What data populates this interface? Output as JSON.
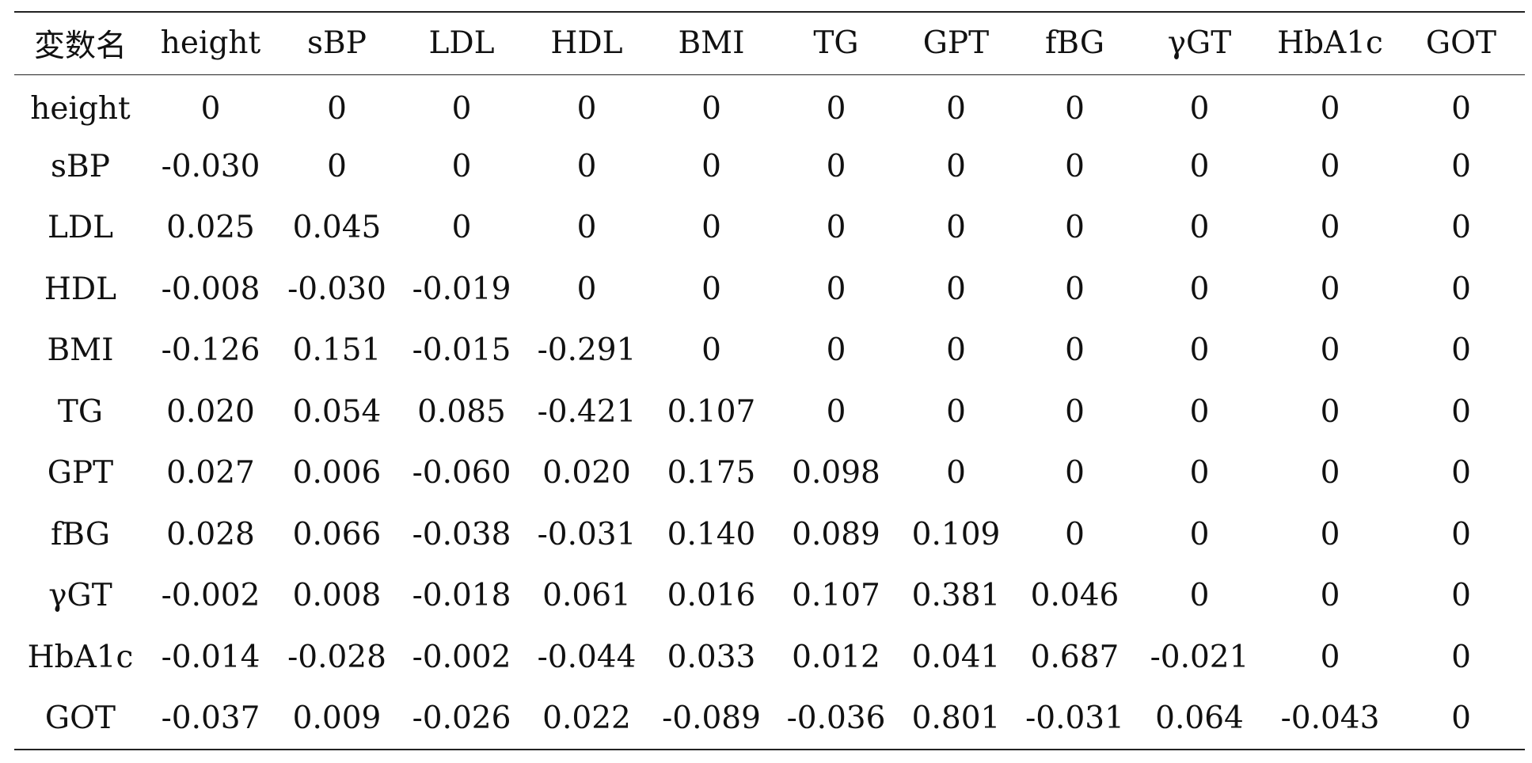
{
  "table": {
    "headers": [
      "変数名",
      "height",
      "sBP",
      "LDL",
      "HDL",
      "BMI",
      "TG",
      "GPT",
      "fBG",
      "γGT",
      "HbA1c",
      "GOT"
    ],
    "rows": [
      {
        "label": "height",
        "cells": [
          "0",
          "0",
          "0",
          "0",
          "0",
          "0",
          "0",
          "0",
          "0",
          "0",
          "0"
        ]
      },
      {
        "label": "sBP",
        "cells": [
          "-0.030",
          "0",
          "0",
          "0",
          "0",
          "0",
          "0",
          "0",
          "0",
          "0",
          "0"
        ]
      },
      {
        "label": "LDL",
        "cells": [
          "0.025",
          "0.045",
          "0",
          "0",
          "0",
          "0",
          "0",
          "0",
          "0",
          "0",
          "0"
        ]
      },
      {
        "label": "HDL",
        "cells": [
          "-0.008",
          "-0.030",
          "-0.019",
          "0",
          "0",
          "0",
          "0",
          "0",
          "0",
          "0",
          "0"
        ]
      },
      {
        "label": "BMI",
        "cells": [
          "-0.126",
          "0.151",
          "-0.015",
          "-0.291",
          "0",
          "0",
          "0",
          "0",
          "0",
          "0",
          "0"
        ]
      },
      {
        "label": "TG",
        "cells": [
          "0.020",
          "0.054",
          "0.085",
          "-0.421",
          "0.107",
          "0",
          "0",
          "0",
          "0",
          "0",
          "0"
        ]
      },
      {
        "label": "GPT",
        "cells": [
          "0.027",
          "0.006",
          "-0.060",
          "0.020",
          "0.175",
          "0.098",
          "0",
          "0",
          "0",
          "0",
          "0"
        ]
      },
      {
        "label": "fBG",
        "cells": [
          "0.028",
          "0.066",
          "-0.038",
          "-0.031",
          "0.140",
          "0.089",
          "0.109",
          "0",
          "0",
          "0",
          "0"
        ]
      },
      {
        "label": "γGT",
        "cells": [
          "-0.002",
          "0.008",
          "-0.018",
          "0.061",
          "0.016",
          "0.107",
          "0.381",
          "0.046",
          "0",
          "0",
          "0"
        ]
      },
      {
        "label": "HbA1c",
        "cells": [
          "-0.014",
          "-0.028",
          "-0.002",
          "-0.044",
          "0.033",
          "0.012",
          "0.041",
          "0.687",
          "-0.021",
          "0",
          "0"
        ]
      },
      {
        "label": "GOT",
        "cells": [
          "-0.037",
          "0.009",
          "-0.026",
          "0.022",
          "-0.089",
          "-0.036",
          "0.801",
          "-0.031",
          "0.064",
          "-0.043",
          "0"
        ]
      }
    ]
  }
}
